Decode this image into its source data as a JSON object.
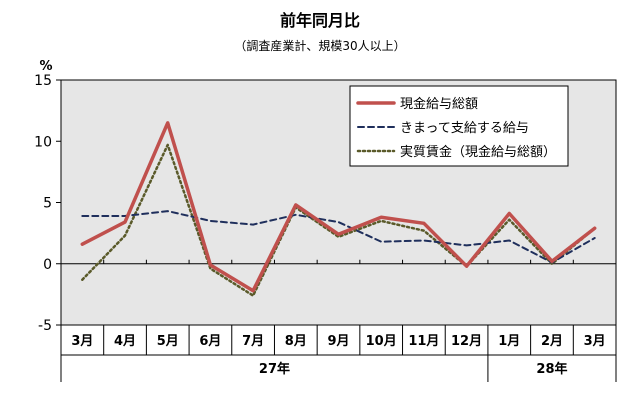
{
  "chart_data": {
    "type": "line",
    "title": "前年同月比",
    "subtitle": "（調査産業計、規模30人以上）",
    "ylabel": "%",
    "ylim": [
      -5,
      15
    ],
    "yticks": [
      -5,
      0,
      5,
      10,
      15
    ],
    "grid": false,
    "legend_position": "top-right",
    "categories": [
      "3月",
      "4月",
      "5月",
      "6月",
      "7月",
      "8月",
      "9月",
      "10月",
      "11月",
      "12月",
      "1月",
      "2月",
      "3月"
    ],
    "year_groups": [
      {
        "label": "27年",
        "start": 0,
        "end": 9
      },
      {
        "label": "28年",
        "start": 10,
        "end": 12
      }
    ],
    "series": [
      {
        "name": "現金給与総額",
        "style": "solid",
        "color": "#c0504d",
        "values": [
          1.6,
          3.4,
          11.5,
          -0.1,
          -2.2,
          4.8,
          2.4,
          3.8,
          3.3,
          -0.2,
          4.1,
          0.2,
          2.9
        ]
      },
      {
        "name": "きまって支給する給与",
        "style": "dashed",
        "color": "#1f2f5c",
        "values": [
          3.9,
          3.9,
          4.3,
          3.5,
          3.2,
          4.0,
          3.4,
          1.8,
          1.9,
          1.5,
          1.9,
          0.1,
          2.1
        ]
      },
      {
        "name": "実質賃金（現金給与総額）",
        "style": "dotted",
        "color": "#5a5a2a",
        "values": [
          -1.3,
          2.3,
          9.7,
          -0.4,
          -2.6,
          4.6,
          2.2,
          3.5,
          2.7,
          -0.2,
          3.6,
          0.0,
          2.9
        ]
      }
    ]
  }
}
